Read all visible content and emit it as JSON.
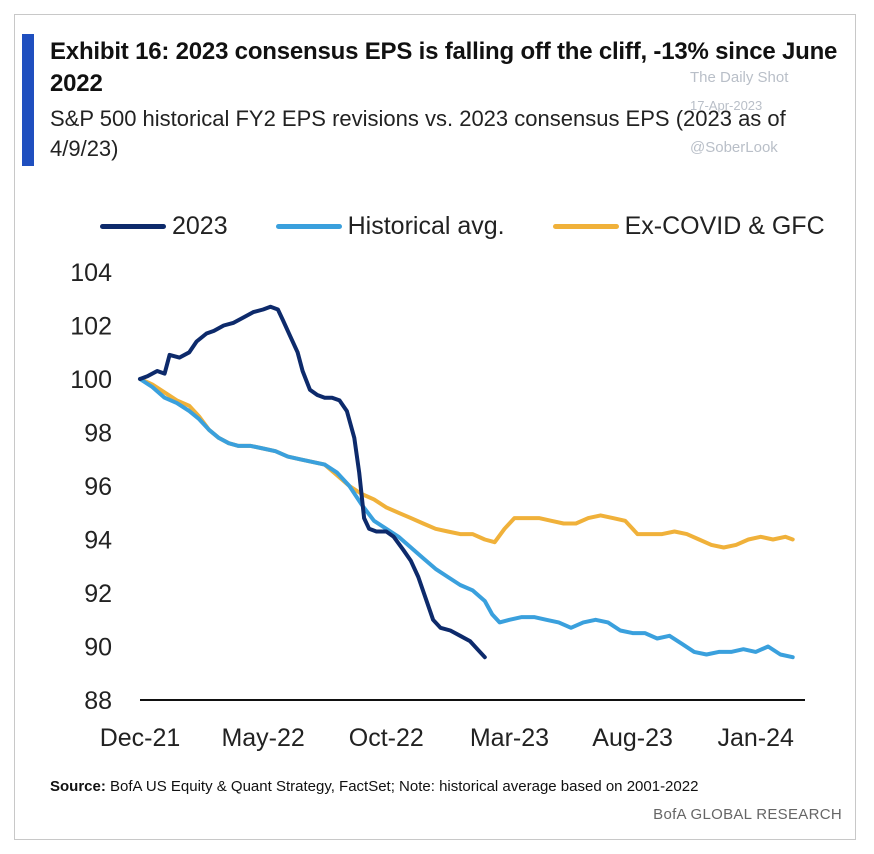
{
  "header": {
    "title": "Exhibit 16: 2023  consensus EPS is falling off the cliff, -13% since June 2022",
    "subtitle": "S&P 500 historical FY2 EPS revisions vs. 2023 consensus EPS (2023 as of 4/9/23)"
  },
  "watermark": {
    "line1": "The Daily Shot",
    "line2": "17-Apr-2023",
    "line3": "@SoberLook"
  },
  "source": {
    "label": "Source:",
    "text": "BofA US Equity  & Quant  Strategy, FactSet; Note: historical  average based on 2001-2022"
  },
  "brand": "BofA GLOBAL RESEARCH",
  "colors": {
    "s2023": "#0d2a6b",
    "historical": "#3aa0dd",
    "excovid": "#f0b13a"
  },
  "chart_data": {
    "type": "line",
    "ylim": [
      88,
      104
    ],
    "yticks": [
      "104",
      "102",
      "100",
      "98",
      "96",
      "94",
      "92",
      "90",
      "88"
    ],
    "ytick_values": [
      104,
      102,
      100,
      98,
      96,
      94,
      92,
      90,
      88
    ],
    "xlim": [
      0,
      27
    ],
    "xticks": [
      "Dec-21",
      "May-22",
      "Oct-22",
      "Mar-23",
      "Aug-23",
      "Jan-24"
    ],
    "xtick_values": [
      0,
      5,
      10,
      15,
      20,
      25
    ],
    "legend_position": "top",
    "series": [
      {
        "name": "2023",
        "color_key": "s2023",
        "points": [
          [
            0,
            100
          ],
          [
            0.3,
            100.1
          ],
          [
            0.7,
            100.3
          ],
          [
            1,
            100.2
          ],
          [
            1.2,
            100.9
          ],
          [
            1.6,
            100.8
          ],
          [
            2,
            101.0
          ],
          [
            2.3,
            101.4
          ],
          [
            2.7,
            101.7
          ],
          [
            3,
            101.8
          ],
          [
            3.4,
            102.0
          ],
          [
            3.8,
            102.1
          ],
          [
            4.2,
            102.3
          ],
          [
            4.6,
            102.5
          ],
          [
            5,
            102.6
          ],
          [
            5.3,
            102.7
          ],
          [
            5.6,
            102.6
          ],
          [
            5.8,
            102.2
          ],
          [
            6.1,
            101.6
          ],
          [
            6.4,
            101.0
          ],
          [
            6.6,
            100.3
          ],
          [
            6.9,
            99.6
          ],
          [
            7.2,
            99.4
          ],
          [
            7.5,
            99.3
          ],
          [
            7.8,
            99.3
          ],
          [
            8.1,
            99.2
          ],
          [
            8.4,
            98.8
          ],
          [
            8.7,
            97.8
          ],
          [
            8.9,
            96.5
          ],
          [
            9.1,
            94.8
          ],
          [
            9.3,
            94.4
          ],
          [
            9.6,
            94.3
          ],
          [
            10,
            94.3
          ],
          [
            10.3,
            94.1
          ],
          [
            10.7,
            93.6
          ],
          [
            11,
            93.2
          ],
          [
            11.3,
            92.6
          ],
          [
            11.6,
            91.8
          ],
          [
            11.9,
            91.0
          ],
          [
            12.2,
            90.7
          ],
          [
            12.6,
            90.6
          ],
          [
            13,
            90.4
          ],
          [
            13.4,
            90.2
          ],
          [
            13.7,
            89.9
          ],
          [
            14,
            89.6
          ]
        ]
      },
      {
        "name": "Historical avg.",
        "color_key": "historical",
        "points": [
          [
            0,
            100
          ],
          [
            0.5,
            99.7
          ],
          [
            1,
            99.3
          ],
          [
            1.5,
            99.1
          ],
          [
            2,
            98.8
          ],
          [
            2.4,
            98.5
          ],
          [
            2.8,
            98.1
          ],
          [
            3.2,
            97.8
          ],
          [
            3.6,
            97.6
          ],
          [
            4,
            97.5
          ],
          [
            4.5,
            97.5
          ],
          [
            5,
            97.4
          ],
          [
            5.5,
            97.3
          ],
          [
            6,
            97.1
          ],
          [
            6.5,
            97.0
          ],
          [
            7,
            96.9
          ],
          [
            7.5,
            96.8
          ],
          [
            8,
            96.5
          ],
          [
            8.5,
            96.0
          ],
          [
            9,
            95.3
          ],
          [
            9.5,
            94.7
          ],
          [
            10,
            94.4
          ],
          [
            10.5,
            94.1
          ],
          [
            11,
            93.7
          ],
          [
            11.5,
            93.3
          ],
          [
            12,
            92.9
          ],
          [
            12.5,
            92.6
          ],
          [
            13,
            92.3
          ],
          [
            13.5,
            92.1
          ],
          [
            14,
            91.7
          ],
          [
            14.3,
            91.2
          ],
          [
            14.6,
            90.9
          ],
          [
            15,
            91.0
          ],
          [
            15.5,
            91.1
          ],
          [
            16,
            91.1
          ],
          [
            16.5,
            91.0
          ],
          [
            17,
            90.9
          ],
          [
            17.5,
            90.7
          ],
          [
            18,
            90.9
          ],
          [
            18.5,
            91.0
          ],
          [
            19,
            90.9
          ],
          [
            19.5,
            90.6
          ],
          [
            20,
            90.5
          ],
          [
            20.5,
            90.5
          ],
          [
            21,
            90.3
          ],
          [
            21.5,
            90.4
          ],
          [
            22,
            90.1
          ],
          [
            22.5,
            89.8
          ],
          [
            23,
            89.7
          ],
          [
            23.5,
            89.8
          ],
          [
            24,
            89.8
          ],
          [
            24.5,
            89.9
          ],
          [
            25,
            89.8
          ],
          [
            25.5,
            90.0
          ],
          [
            26,
            89.7
          ],
          [
            26.5,
            89.6
          ]
        ]
      },
      {
        "name": "Ex-COVID & GFC",
        "color_key": "excovid",
        "points": [
          [
            0,
            100
          ],
          [
            0.5,
            99.8
          ],
          [
            1,
            99.5
          ],
          [
            1.5,
            99.2
          ],
          [
            2,
            99.0
          ],
          [
            2.4,
            98.6
          ],
          [
            2.8,
            98.1
          ],
          [
            3.2,
            97.8
          ],
          [
            3.6,
            97.6
          ],
          [
            4,
            97.5
          ],
          [
            4.5,
            97.5
          ],
          [
            5,
            97.4
          ],
          [
            5.5,
            97.3
          ],
          [
            6,
            97.1
          ],
          [
            6.5,
            97.0
          ],
          [
            7,
            96.9
          ],
          [
            7.5,
            96.8
          ],
          [
            8,
            96.4
          ],
          [
            8.5,
            96.0
          ],
          [
            9,
            95.7
          ],
          [
            9.5,
            95.5
          ],
          [
            10,
            95.2
          ],
          [
            10.5,
            95.0
          ],
          [
            11,
            94.8
          ],
          [
            11.5,
            94.6
          ],
          [
            12,
            94.4
          ],
          [
            12.5,
            94.3
          ],
          [
            13,
            94.2
          ],
          [
            13.5,
            94.2
          ],
          [
            14,
            94.0
          ],
          [
            14.4,
            93.9
          ],
          [
            14.8,
            94.4
          ],
          [
            15.2,
            94.8
          ],
          [
            15.7,
            94.8
          ],
          [
            16.2,
            94.8
          ],
          [
            16.7,
            94.7
          ],
          [
            17.2,
            94.6
          ],
          [
            17.7,
            94.6
          ],
          [
            18.2,
            94.8
          ],
          [
            18.7,
            94.9
          ],
          [
            19.2,
            94.8
          ],
          [
            19.7,
            94.7
          ],
          [
            20.2,
            94.2
          ],
          [
            20.7,
            94.2
          ],
          [
            21.2,
            94.2
          ],
          [
            21.7,
            94.3
          ],
          [
            22.2,
            94.2
          ],
          [
            22.7,
            94.0
          ],
          [
            23.2,
            93.8
          ],
          [
            23.7,
            93.7
          ],
          [
            24.2,
            93.8
          ],
          [
            24.7,
            94.0
          ],
          [
            25.2,
            94.1
          ],
          [
            25.7,
            94.0
          ],
          [
            26.2,
            94.1
          ],
          [
            26.5,
            94.0
          ]
        ]
      }
    ]
  }
}
